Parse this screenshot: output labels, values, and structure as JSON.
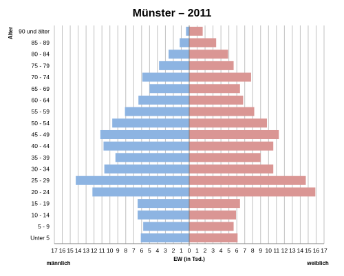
{
  "chart_data": {
    "type": "bar",
    "orientation": "horizontal",
    "title": "Münster – 2011",
    "ylabel": "Alter",
    "xlabel": "EW (in Tsd.)",
    "left_label": "männlich",
    "right_label": "weiblich",
    "xlim": [
      -17,
      17
    ],
    "xticks": [
      17,
      16,
      15,
      14,
      13,
      12,
      11,
      10,
      9,
      8,
      7,
      6,
      5,
      4,
      3,
      2,
      1,
      0,
      1,
      2,
      3,
      4,
      5,
      6,
      7,
      8,
      9,
      10,
      11,
      12,
      13,
      14,
      15,
      16,
      17
    ],
    "grid": "vertical",
    "categories": [
      "90 und älter",
      "85 - 89",
      "80 - 84",
      "75 - 79",
      "70 - 74",
      "65 - 69",
      "60 - 64",
      "55 - 59",
      "50 - 54",
      "45 - 49",
      "40 - 44",
      "35 - 39",
      "30 - 34",
      "25 - 29",
      "20 - 24",
      "15 - 19",
      "10 - 14",
      "5 - 9",
      "Unter 5"
    ],
    "series": [
      {
        "name": "männlich",
        "color": "#8db4e2",
        "values": [
          0.4,
          1.2,
          2.6,
          3.8,
          5.9,
          5.0,
          6.4,
          8.1,
          9.7,
          11.2,
          10.8,
          9.3,
          10.7,
          14.3,
          12.2,
          6.5,
          6.5,
          5.8,
          6.1
        ]
      },
      {
        "name": "weiblich",
        "color": "#da9694",
        "values": [
          1.7,
          3.4,
          4.9,
          5.6,
          7.8,
          6.4,
          6.8,
          8.2,
          9.8,
          11.3,
          10.6,
          9.0,
          10.6,
          14.7,
          15.9,
          6.4,
          5.9,
          5.6,
          6.1
        ]
      }
    ]
  }
}
